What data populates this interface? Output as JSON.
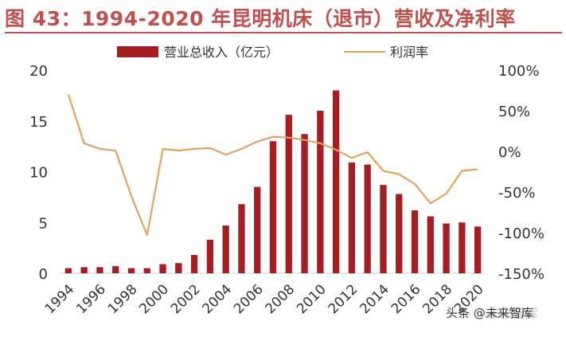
{
  "header": {
    "title": "图 43：1994-2020 年昆明机床（退市）营收及净利率"
  },
  "watermark": {
    "text": "头条 @未来智库",
    "shadow_text": "未来智库"
  },
  "colors": {
    "title": "#c0504d",
    "revenue_bar": "#a41e22",
    "net_margin_line": "#e0a360",
    "axis_text": "#333333"
  },
  "chart_data": {
    "type": "bar",
    "title": "",
    "xlabel": "",
    "ylabel": "",
    "legend_position": "top-center",
    "grid": false,
    "x": [
      1994,
      1995,
      1996,
      1997,
      1998,
      1999,
      2000,
      2001,
      2002,
      2003,
      2004,
      2005,
      2006,
      2007,
      2008,
      2009,
      2010,
      2011,
      2012,
      2013,
      2014,
      2015,
      2016,
      2017,
      2018,
      2019,
      2020
    ],
    "x_tick_labels": [
      "1994",
      "1996",
      "1998",
      "2000",
      "2002",
      "2004",
      "2006",
      "2008",
      "2010",
      "2012",
      "2014",
      "2016",
      "2018",
      "2020"
    ],
    "ylim": [
      0,
      20
    ],
    "y_ticks": [
      0,
      5,
      10,
      15,
      20
    ],
    "y_tick_labels": [
      "0",
      "5",
      "10",
      "15",
      "20"
    ],
    "y2lim": [
      -150,
      100
    ],
    "y2_ticks": [
      -150,
      -100,
      -50,
      0,
      50,
      100
    ],
    "y2_tick_labels": [
      "-150%",
      "-100%",
      "-50%",
      "0%",
      "50%",
      "100%"
    ],
    "series": [
      {
        "name": "营业总收入（亿元）",
        "type": "bar",
        "axis": "left",
        "values": [
          0.5,
          0.6,
          0.6,
          0.7,
          0.5,
          0.5,
          0.9,
          1.0,
          1.8,
          3.3,
          4.7,
          6.8,
          8.5,
          13.0,
          15.6,
          13.7,
          16.0,
          18.0,
          10.9,
          10.7,
          8.7,
          7.8,
          6.2,
          5.6,
          4.9,
          5.0,
          4.6
        ]
      },
      {
        "name": "利润率",
        "type": "line",
        "axis": "right",
        "values": [
          70,
          10,
          3,
          1,
          -55,
          -103,
          3,
          1,
          3,
          4,
          -4,
          3,
          12,
          18,
          17,
          14,
          10,
          2,
          -8,
          -1,
          -24,
          -28,
          -40,
          -64,
          -52,
          -24,
          -22
        ]
      }
    ]
  }
}
